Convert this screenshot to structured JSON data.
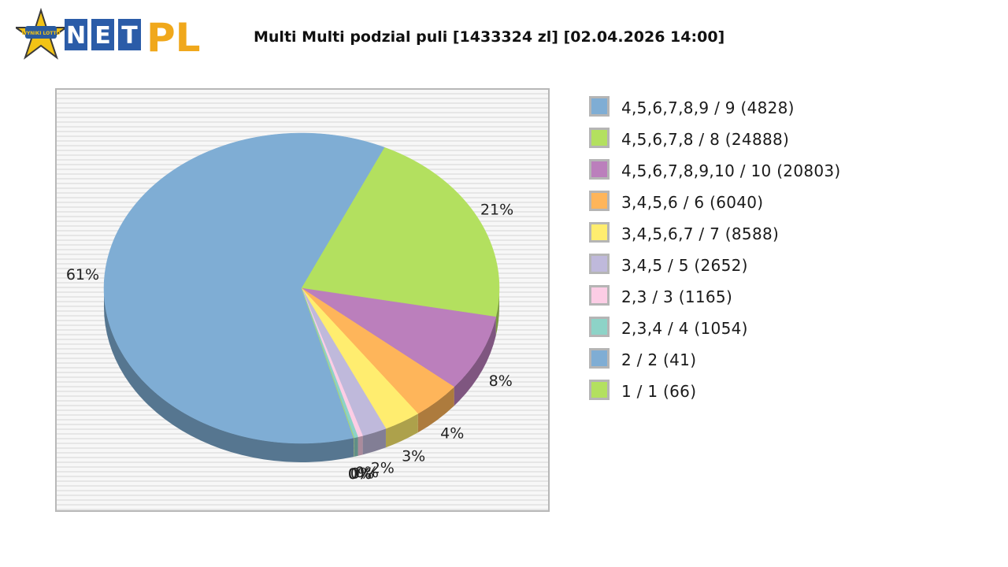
{
  "header": {
    "logo": {
      "icon": "star-logo-icon",
      "badge_text": "WYNIKI LOTTO",
      "letters": [
        "N",
        "E",
        "T"
      ],
      "suffix": "PL"
    },
    "title": "Multi Multi podzial puli [1433324 zl] [02.04.2026 14:00]"
  },
  "chart_data": {
    "type": "pie",
    "title": "Multi Multi podzial puli [1433324 zl] [02.04.2026 14:00]",
    "style": "3d",
    "background": "striped",
    "legend_position": "right",
    "slices": [
      {
        "label": "4,5,6,7,8,9 / 9 (4828)",
        "value": 61,
        "display": "61%",
        "color": "#7fadd4"
      },
      {
        "label": "4,5,6,7,8 / 8 (24888)",
        "value": 21,
        "display": "21%",
        "color": "#b3e05f"
      },
      {
        "label": "4,5,6,7,8,9,10 / 10 (20803)",
        "value": 8,
        "display": "8%",
        "color": "#bb7fbc"
      },
      {
        "label": "3,4,5,6 / 6 (6040)",
        "value": 4,
        "display": "4%",
        "color": "#feb55a"
      },
      {
        "label": "3,4,5,6,7 / 7 (8588)",
        "value": 3,
        "display": "3%",
        "color": "#ffed6f"
      },
      {
        "label": "3,4,5 / 5 (2652)",
        "value": 2,
        "display": "2%",
        "color": "#bfb9db"
      },
      {
        "label": "2,3 / 3 (1165)",
        "value": 0.4,
        "display": "0%",
        "color": "#fccde5"
      },
      {
        "label": "2,3,4 / 4 (1054)",
        "value": 0.3,
        "display": "0%",
        "color": "#8dd3c7"
      },
      {
        "label": "2 / 2 (41)",
        "value": 0.02,
        "display": "0%",
        "color": "#7fadd4"
      },
      {
        "label": "1 / 1 (66)",
        "value": 0.03,
        "display": "0%",
        "color": "#b3e05f"
      }
    ]
  }
}
